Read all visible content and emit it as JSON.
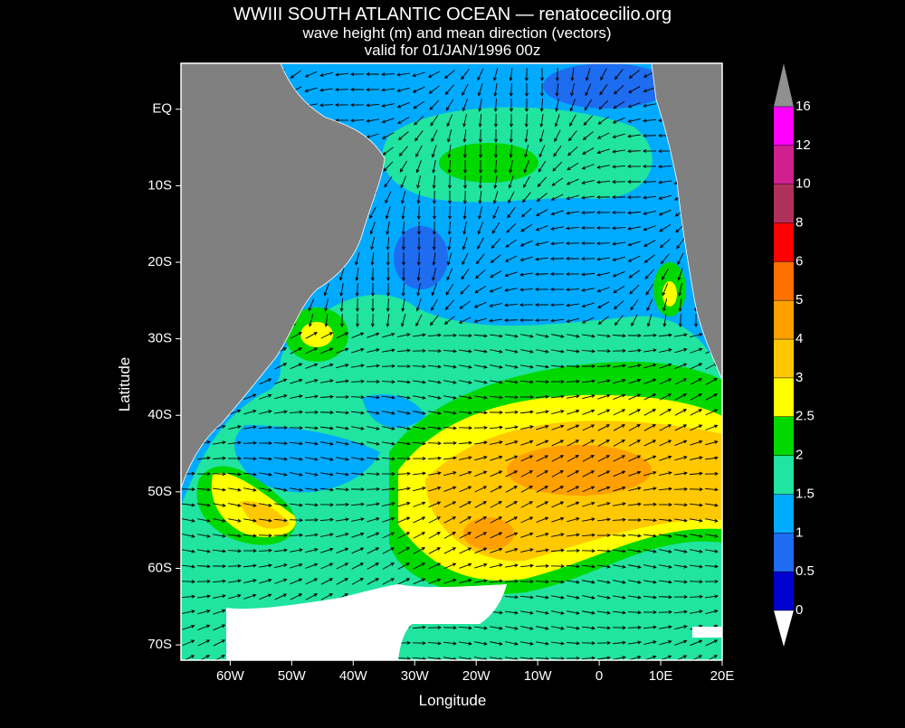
{
  "chart_data": {
    "type": "contour-map",
    "title": "WWIII SOUTH ATLANTIC OCEAN — renatocecilio.org",
    "subtitle": "wave height (m) and mean direction (vectors)",
    "valid_time": "valid for 01/JAN/1996 00z",
    "x_label": "Longitude",
    "y_label": "Latitude",
    "xlim": [
      -68,
      20
    ],
    "ylim": [
      -72,
      6
    ],
    "xticks": [
      {
        "value": -60,
        "label": "60W"
      },
      {
        "value": -50,
        "label": "50W"
      },
      {
        "value": -40,
        "label": "40W"
      },
      {
        "value": -30,
        "label": "30W"
      },
      {
        "value": -20,
        "label": "20W"
      },
      {
        "value": -10,
        "label": "10W"
      },
      0,
      {
        "value": 10,
        "label": "10E"
      },
      {
        "value": 20,
        "label": "20E"
      }
    ],
    "yticks": [
      {
        "value": 0,
        "label": "EQ"
      },
      {
        "value": -10,
        "label": "10S"
      },
      {
        "value": -20,
        "label": "20S"
      },
      {
        "value": -30,
        "label": "30S"
      },
      {
        "value": -40,
        "label": "40S"
      },
      {
        "value": -50,
        "label": "50S"
      },
      {
        "value": -60,
        "label": "60S"
      },
      {
        "value": -70,
        "label": "70S"
      }
    ],
    "colorbar": {
      "levels": [
        0,
        0.5,
        1,
        1.5,
        2,
        2.5,
        3,
        4,
        5,
        6,
        8,
        10,
        12,
        16
      ],
      "colors": [
        "#0000d0",
        "#1e6cf0",
        "#00aaff",
        "#20e4a0",
        "#00d800",
        "#ffff00",
        "#ffc800",
        "#ffa000",
        "#ff7000",
        "#ff0000",
        "#b0305c",
        "#d02090",
        "#ff00ff"
      ],
      "under_color": "#ffffff",
      "over_color": "#909090"
    }
  }
}
